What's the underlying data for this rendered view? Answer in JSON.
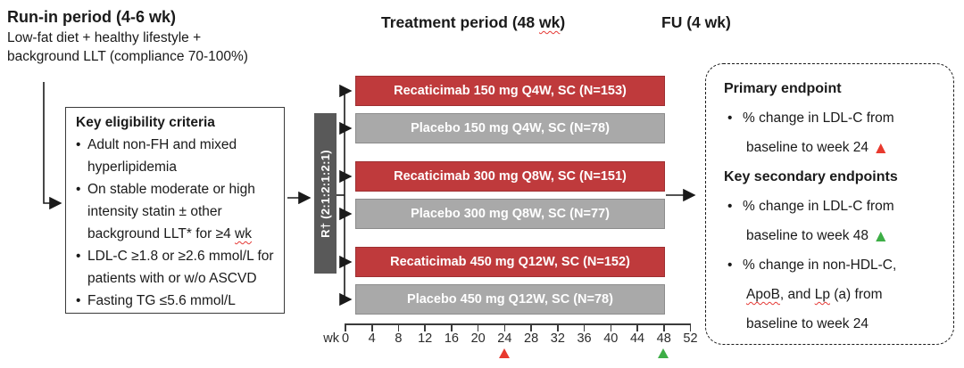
{
  "headers": {
    "run_in": "Run-in period (4-6 wk)",
    "run_in_lines": [
      "Low-fat diet + healthy lifestyle +",
      "background LLT (compliance 70-100%)"
    ],
    "treatment": [
      {
        "t": "Treatment period (48 "
      },
      {
        "t": "wk",
        "wavy": true
      },
      {
        "t": ")"
      }
    ],
    "fu": "FU (4 wk)"
  },
  "eligibility": {
    "title": "Key eligibility criteria",
    "bullets": [
      {
        "lines": [
          "Adult non-FH and mixed",
          "hyperlipidemia"
        ]
      },
      {
        "lines": [
          "On stable moderate or high",
          "intensity statin ± other",
          [
            {
              "t": "background LLT* for ≥4 "
            },
            {
              "t": "wk",
              "wavy": true
            }
          ]
        ]
      },
      {
        "lines": [
          "LDL-C ≥1.8 or ≥2.6 mmol/L for",
          "patients with or w/o ASCVD"
        ]
      },
      {
        "lines": [
          "Fasting TG ≤5.6 mmol/L"
        ]
      }
    ]
  },
  "randomization": {
    "label": "R† (2:1:2:1:2:1)",
    "ratio": "2:1:2:1:2:1"
  },
  "arms": [
    {
      "label": "Recaticimab 150 mg Q4W, SC (N=153)",
      "type": "treatment"
    },
    {
      "label": "Placebo 150 mg Q4W, SC (N=78)",
      "type": "placebo"
    },
    {
      "label": "Recaticimab 300 mg Q8W, SC (N=151)",
      "type": "treatment"
    },
    {
      "label": "Placebo 300 mg Q8W, SC (N=77)",
      "type": "placebo"
    },
    {
      "label": "Recaticimab 450 mg Q12W, SC (N=152)",
      "type": "treatment"
    },
    {
      "label": "Placebo 450 mg Q12W, SC (N=78)",
      "type": "placebo"
    }
  ],
  "timeline": {
    "unit_label": "wk",
    "ticks": [
      0,
      4,
      8,
      12,
      16,
      20,
      24,
      28,
      32,
      36,
      40,
      44,
      48,
      52
    ],
    "markers": [
      {
        "week": 24,
        "color": "#e8392e",
        "name": "week24-primary-endpoint-marker-icon"
      },
      {
        "week": 48,
        "color": "#3dae46",
        "name": "week48-secondary-endpoint-marker-icon"
      }
    ]
  },
  "endpoints": {
    "sections": [
      {
        "heading": "Primary endpoint",
        "bullets": [
          {
            "lines": [
              [
                {
                  "t": "% change in LDL-C from"
                }
              ],
              [
                {
                  "t": "baseline to week 24 "
                },
                {
                  "t": "▲",
                  "color": "#e8392e",
                  "tri": true
                }
              ]
            ]
          }
        ]
      },
      {
        "heading": "Key secondary endpoints",
        "bullets": [
          {
            "lines": [
              [
                {
                  "t": "% change in LDL-C from"
                }
              ],
              [
                {
                  "t": "baseline to week 48 "
                },
                {
                  "t": "▲",
                  "color": "#3dae46",
                  "tri": true
                }
              ]
            ]
          },
          {
            "lines": [
              [
                {
                  "t": "% change in non-HDL-C,"
                }
              ],
              [
                {
                  "t": "ApoB",
                  "wavy": true
                },
                {
                  "t": ", and "
                },
                {
                  "t": "Lp",
                  "wavy": true
                },
                {
                  "t": " (a) from"
                }
              ],
              [
                {
                  "t": "baseline to week 24"
                }
              ]
            ]
          }
        ]
      }
    ]
  },
  "colors": {
    "treatment_fill": "#bf3a3c",
    "treatment_border": "#9e2f31",
    "placebo_fill": "#a9a9a9",
    "placebo_border": "#8c8c8c",
    "randomization_fill": "#595959",
    "marker_red": "#e8392e",
    "marker_green": "#3dae46",
    "line": "#1a1a1a"
  }
}
